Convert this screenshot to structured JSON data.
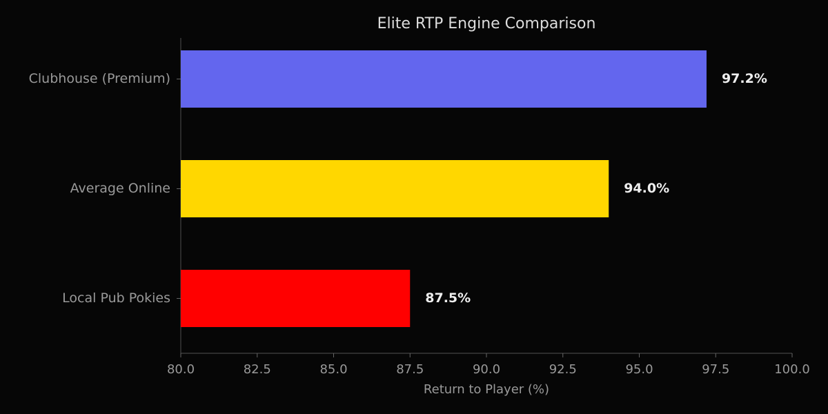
{
  "chart_data": {
    "type": "barh",
    "title": "Elite RTP Engine Comparison",
    "x_label": "Return to Player (%)",
    "categories": [
      "Clubhouse (Premium)",
      "Average Online",
      "Local Pub Pokies"
    ],
    "values": [
      97.2,
      94.0,
      87.5
    ],
    "value_labels": [
      "97.2%",
      "94.0%",
      "87.5%"
    ],
    "colors": [
      "#6366ee",
      "#ffd700",
      "#ff0000"
    ],
    "xlim": [
      80,
      100
    ],
    "xticks": [
      {
        "value": 80,
        "label": "80.0"
      },
      82.5,
      {
        "value": 85,
        "label": "85.0"
      },
      87.5,
      {
        "value": 90,
        "label": "90.0"
      },
      92.5,
      {
        "value": 95,
        "label": "95.0"
      },
      97.5,
      {
        "value": 100,
        "label": "100.0"
      }
    ]
  }
}
